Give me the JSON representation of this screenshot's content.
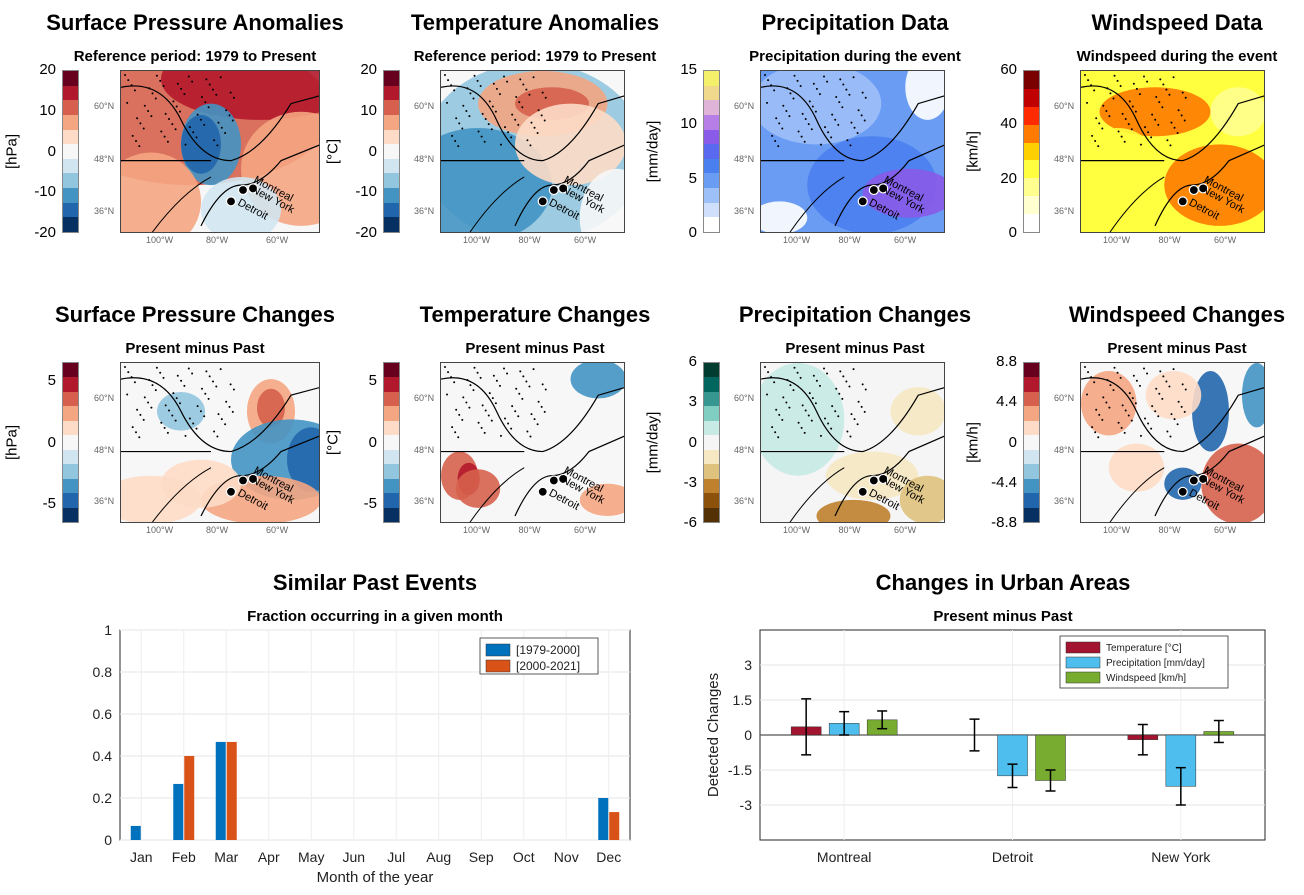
{
  "top_row": [
    {
      "title": "Surface Pressure Anomalies",
      "subtitle": "Reference period: 1979 to Present",
      "unit": "[hPa]",
      "ticks": [
        "20",
        "10",
        "0",
        "-10",
        "-20"
      ],
      "colors": [
        "#67001f",
        "#b2182b",
        "#d6604d",
        "#f4a582",
        "#fddbc7",
        "#f7f7f7",
        "#d1e5f0",
        "#92c5de",
        "#4393c3",
        "#2166ac",
        "#053061"
      ]
    },
    {
      "title": "Temperature Anomalies",
      "subtitle": "Reference period: 1979 to Present",
      "unit": "[°C]",
      "ticks": [
        "20",
        "10",
        "0",
        "-10",
        "-20"
      ],
      "colors": [
        "#67001f",
        "#b2182b",
        "#d6604d",
        "#f4a582",
        "#fddbc7",
        "#f7f7f7",
        "#d1e5f0",
        "#92c5de",
        "#4393c3",
        "#2166ac",
        "#053061"
      ]
    },
    {
      "title": "Precipitation Data",
      "subtitle": "Precipitation during the event",
      "unit": "[mm/day]",
      "ticks": [
        "15",
        "10",
        "5",
        "0"
      ],
      "colors": [
        "#f5f06a",
        "#f0d88c",
        "#e0b4d8",
        "#b87ee8",
        "#8a5ae8",
        "#5a6af0",
        "#4a7ff0",
        "#6a9cf4",
        "#9ec0f8",
        "#d0e0fc",
        "#ffffff"
      ]
    },
    {
      "title": "Windspeed Data",
      "subtitle": "Windspeed during the event",
      "unit": "[km/h]",
      "ticks": [
        "60",
        "40",
        "20",
        "0"
      ],
      "colors": [
        "#7a0000",
        "#c00000",
        "#ff2a00",
        "#ff7a00",
        "#ffd000",
        "#ffff40",
        "#ffff90",
        "#ffffd0",
        "#ffffff"
      ]
    }
  ],
  "middle_row": [
    {
      "title": "Surface Pressure Changes",
      "subtitle": "Present minus Past",
      "unit": "[hPa]",
      "ticks": [
        "5",
        "0",
        "-5"
      ],
      "colors": [
        "#67001f",
        "#b2182b",
        "#d6604d",
        "#f4a582",
        "#fddbc7",
        "#f7f7f7",
        "#d1e5f0",
        "#92c5de",
        "#4393c3",
        "#2166ac",
        "#053061"
      ]
    },
    {
      "title": "Temperature Changes",
      "subtitle": "Present minus Past",
      "unit": "[°C]",
      "ticks": [
        "5",
        "0",
        "-5"
      ],
      "colors": [
        "#67001f",
        "#b2182b",
        "#d6604d",
        "#f4a582",
        "#fddbc7",
        "#f7f7f7",
        "#d1e5f0",
        "#92c5de",
        "#4393c3",
        "#2166ac",
        "#053061"
      ]
    },
    {
      "title": "Precipitation Changes",
      "subtitle": "Present minus Past",
      "unit": "[mm/day]",
      "ticks": [
        "6",
        "3",
        "0",
        "-3",
        "-6"
      ],
      "colors": [
        "#003c30",
        "#01665e",
        "#35978f",
        "#80cdc1",
        "#c7eae5",
        "#f5f5f5",
        "#f6e8c3",
        "#dfc27d",
        "#bf812d",
        "#8c510a",
        "#543005"
      ]
    },
    {
      "title": "Windspeed Changes",
      "subtitle": "Present minus Past",
      "unit": "[km/h]",
      "ticks": [
        "8.8",
        "4.4",
        "0",
        "-4.4",
        "-8.8"
      ],
      "colors": [
        "#67001f",
        "#b2182b",
        "#d6604d",
        "#f4a582",
        "#fddbc7",
        "#f7f7f7",
        "#d1e5f0",
        "#92c5de",
        "#4393c3",
        "#2166ac",
        "#053061"
      ]
    }
  ],
  "map_labels": {
    "lat": [
      "60°N",
      "48°N",
      "36°N"
    ],
    "lon": [
      "100°W",
      "80°W",
      "60°W"
    ],
    "cities": [
      "Montreal",
      "Detroit",
      "New York"
    ]
  },
  "chart_data": [
    {
      "type": "bar",
      "title": "Similar Past Events",
      "subtitle": "Fraction occurring in a given month",
      "xlabel": "Month of the year",
      "ylabel": "",
      "ylim": [
        0,
        1
      ],
      "yticks": [
        "0",
        "0.2",
        "0.4",
        "0.6",
        "0.8",
        "1"
      ],
      "categories": [
        "Jan",
        "Feb",
        "Mar",
        "Apr",
        "May",
        "Jun",
        "Jul",
        "Aug",
        "Sep",
        "Oct",
        "Nov",
        "Dec"
      ],
      "series": [
        {
          "name": "[1979-2000]",
          "color": "#0072bd",
          "values": [
            0.067,
            0.267,
            0.467,
            0,
            0,
            0,
            0,
            0,
            0,
            0,
            0,
            0.2
          ]
        },
        {
          "name": "[2000-2021]",
          "color": "#d95319",
          "values": [
            0,
            0.4,
            0.467,
            0,
            0,
            0,
            0,
            0,
            0,
            0,
            0,
            0.133
          ]
        }
      ],
      "legend": "top-right",
      "grid": true
    },
    {
      "type": "bar",
      "title": "Changes in Urban Areas",
      "subtitle": "Present minus Past",
      "xlabel": "",
      "ylabel": "Detected Changes",
      "ylim": [
        -4.5,
        4.5
      ],
      "yticks": [
        "3",
        "1.5",
        "0",
        "-1.5",
        "-3"
      ],
      "categories": [
        "Montreal",
        "Detroit",
        "New York"
      ],
      "series": [
        {
          "name": "Temperature [°C]",
          "color": "#a2142f",
          "values": [
            0.35,
            0.0,
            -0.2
          ],
          "err": [
            1.2,
            0.68,
            0.65
          ]
        },
        {
          "name": "Precipitation [mm/day]",
          "color": "#4dbeee",
          "values": [
            0.5,
            -1.75,
            -2.2
          ],
          "err": [
            0.5,
            0.5,
            0.8
          ]
        },
        {
          "name": "Windspeed [km/h]",
          "color": "#77ac30",
          "values": [
            0.65,
            -1.95,
            0.15
          ],
          "err": [
            0.38,
            0.45,
            0.47
          ]
        }
      ],
      "legend": "top-right",
      "grid": true
    }
  ]
}
